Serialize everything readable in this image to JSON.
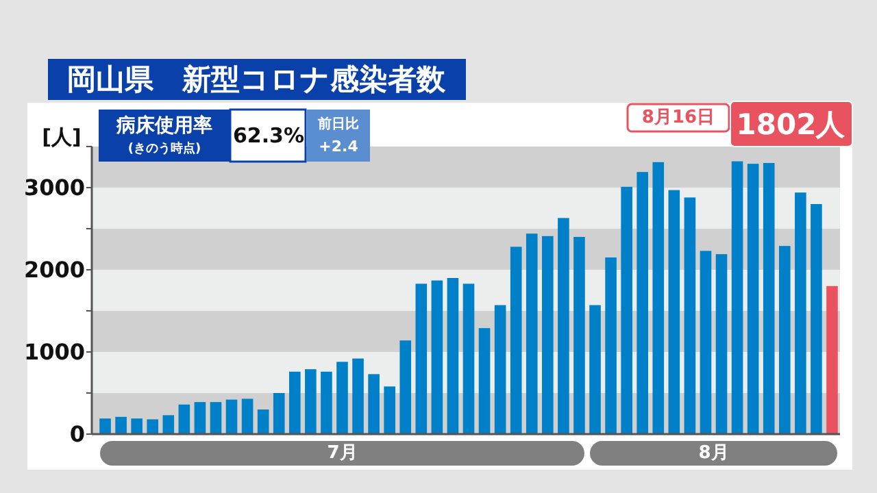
{
  "chart_data": {
    "type": "bar",
    "title": "岡山県　新型コロナ感染者数",
    "ylabel": "[人]",
    "categories": [
      null,
      null,
      null,
      null,
      null,
      null,
      null,
      null,
      null,
      null,
      null,
      null,
      null,
      null,
      null,
      null,
      null,
      null,
      null,
      null,
      null,
      null,
      null,
      null,
      null,
      null,
      null,
      null,
      null,
      null,
      null,
      null,
      null,
      null,
      null,
      null,
      null,
      null,
      null,
      null,
      null,
      null,
      null,
      null,
      null,
      null,
      null
    ],
    "values": [
      190,
      210,
      190,
      180,
      230,
      360,
      390,
      390,
      420,
      430,
      300,
      500,
      760,
      790,
      760,
      880,
      920,
      730,
      580,
      1140,
      1830,
      1870,
      1900,
      1830,
      1290,
      1570,
      2280,
      2440,
      2410,
      2630,
      2400,
      1570,
      2150,
      3010,
      3190,
      3310,
      2970,
      2880,
      2230,
      2190,
      3320,
      3290,
      3300,
      2290,
      2940,
      2800,
      1802
    ],
    "colors": [
      "#0080c8",
      "#0080c8",
      "#0080c8",
      "#0080c8",
      "#0080c8",
      "#0080c8",
      "#0080c8",
      "#0080c8",
      "#0080c8",
      "#0080c8",
      "#0080c8",
      "#0080c8",
      "#0080c8",
      "#0080c8",
      "#0080c8",
      "#0080c8",
      "#0080c8",
      "#0080c8",
      "#0080c8",
      "#0080c8",
      "#0080c8",
      "#0080c8",
      "#0080c8",
      "#0080c8",
      "#0080c8",
      "#0080c8",
      "#0080c8",
      "#0080c8",
      "#0080c8",
      "#0080c8",
      "#0080c8",
      "#0080c8",
      "#0080c8",
      "#0080c8",
      "#0080c8",
      "#0080c8",
      "#0080c8",
      "#0080c8",
      "#0080c8",
      "#0080c8",
      "#0080c8",
      "#0080c8",
      "#0080c8",
      "#0080c8",
      "#0080c8",
      "#0080c8",
      "#e8535f"
    ],
    "ylim": [
      0,
      3500
    ],
    "yticks": [
      0,
      {
        "value": 500,
        "label": null
      },
      1000,
      {
        "value": 1500,
        "label": null
      },
      2000,
      {
        "value": 2500,
        "label": null
      },
      3000,
      {
        "value": 3500,
        "label": null
      }
    ],
    "bands": [
      {
        "axis": "y",
        "from": 0,
        "to": 500,
        "color": "#d0d0d0"
      },
      {
        "axis": "y",
        "from": 1000,
        "to": 1500,
        "color": "#d0d0d0"
      },
      {
        "axis": "y",
        "from": 2000,
        "to": 2500,
        "color": "#d0d0d0"
      },
      {
        "axis": "y",
        "from": 3000,
        "to": 3500,
        "color": "#d0d0d0"
      }
    ],
    "annotations": [
      "病床使用率",
      "(きのう時点)",
      "62.3%",
      "前日比",
      "+2.4",
      "7月",
      "8月",
      "8月16日",
      "1802人"
    ]
  }
}
